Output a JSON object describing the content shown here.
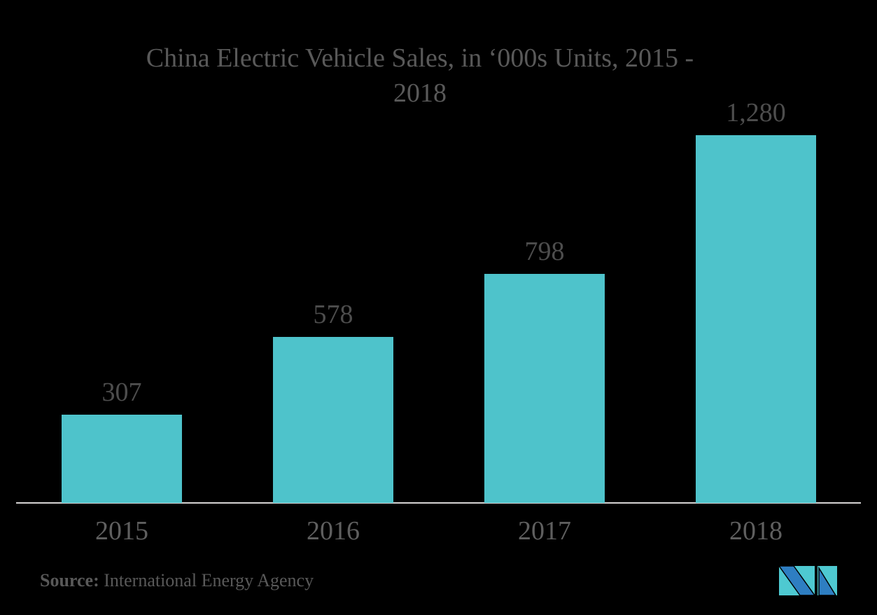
{
  "chart_data": {
    "type": "bar",
    "title": "China Electric Vehicle Sales, in ‘000s Units, 2015 - 2018",
    "title_lines": [
      "China Electric Vehicle Sales, in ‘000s Units, 2015 -",
      "2018"
    ],
    "categories": [
      "2015",
      "2016",
      "2017",
      "2018"
    ],
    "values": [
      307,
      578,
      798,
      1280
    ],
    "value_labels": [
      "307",
      "578",
      "798",
      "1,280"
    ],
    "xlabel": "",
    "ylabel": "",
    "ylim": [
      0,
      1280
    ],
    "grid": false,
    "legend": false,
    "bar_color": "#4EC3CB",
    "title_color": "#595959",
    "value_label_color": "#4D4D4D",
    "axis_label_color": "#5F5F5F",
    "axis_line_color": "#D6D4D4"
  },
  "source": {
    "label": "Source:",
    "text": " International Energy Agency"
  },
  "logo": {
    "name": "mordor-intelligence-logo",
    "blue": "#2E7EC2",
    "teal": "#4EC9D1"
  }
}
